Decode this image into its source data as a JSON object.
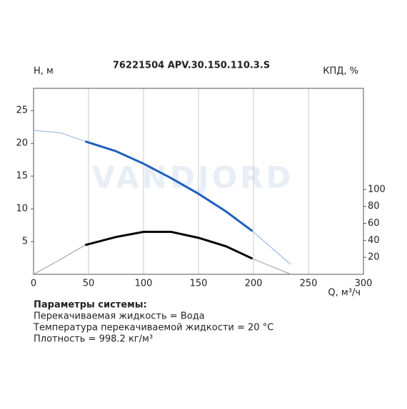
{
  "chart_data": {
    "type": "line",
    "title": "76221504 APV.30.150.110.3.S",
    "y_label": "H, м",
    "y2_label": "КПД, %",
    "x_label": "Q, м³/ч",
    "watermark": "VANDJORD",
    "x": [
      0,
      25,
      47,
      75,
      100,
      125,
      150,
      175,
      199,
      234
    ],
    "work_range": [
      47,
      199
    ],
    "series": [
      {
        "color": "#1f5fbf",
        "thin_color": "#8fb0dd",
        "values": [
          22,
          21.6,
          20.3,
          18.8,
          16.9,
          14.7,
          12.3,
          9.6,
          6.6,
          1.5
        ]
      },
      {
        "color": "#000000",
        "thin_color": "#9a9a9a",
        "axis": "y2",
        "values": [
          0,
          18,
          34.5,
          44,
          50,
          50,
          43,
          33,
          18.5,
          0
        ]
      }
    ],
    "xlim": [
      0,
      300
    ],
    "xticks": [
      0,
      50,
      100,
      150,
      200,
      250,
      300
    ],
    "ylim": [
      0,
      28.4
    ],
    "yticks": [
      5,
      10,
      15,
      20,
      25
    ],
    "y2lim": [
      0,
      219
    ],
    "y2ticks": [
      20,
      40,
      60,
      80,
      100
    ],
    "grid": "x"
  },
  "parameters": {
    "heading": "Параметры системы:",
    "lines": [
      "Перекачиваемая жидкость = Вода",
      "Температура перекачиваемой жидкости = 20 °C",
      "Плотность = 998.2 кг/м³"
    ]
  }
}
